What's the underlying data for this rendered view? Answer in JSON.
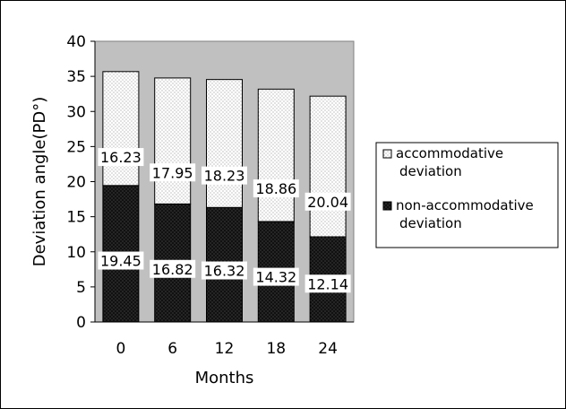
{
  "chart_data": {
    "type": "bar",
    "stacked": true,
    "categories": [
      "0",
      "6",
      "12",
      "18",
      "24"
    ],
    "series": [
      {
        "name": "non-accommodative deviation",
        "values": [
          19.45,
          16.82,
          16.32,
          14.32,
          12.14
        ],
        "color": "#111111"
      },
      {
        "name": "accommodative deviation",
        "values": [
          16.23,
          17.95,
          18.23,
          18.86,
          20.04
        ],
        "color": "#ffffff"
      }
    ],
    "title": "",
    "xlabel": "Months",
    "ylabel": "Deviation angle(PD°)",
    "ylim": [
      0,
      40
    ],
    "yticks": [
      0,
      5,
      10,
      15,
      20,
      25,
      30,
      35,
      40
    ],
    "grid": false,
    "plot_background": "#c0c0c0",
    "legend_position": "right"
  }
}
